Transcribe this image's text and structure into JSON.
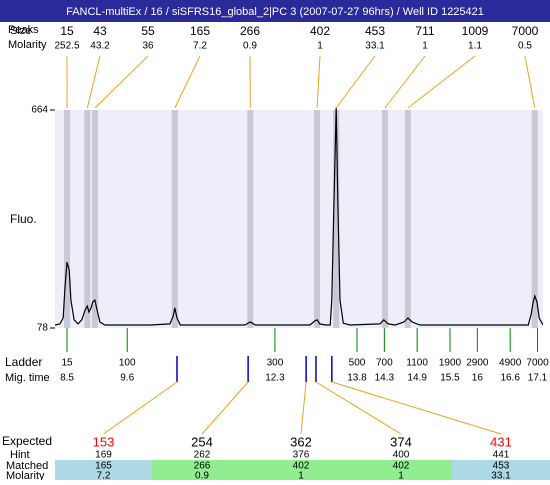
{
  "header": {
    "title": "FANCL-multiEx / 16 / siSFRS16_global_2|PC 3 (2007-07-27 96hrs) / Well ID 1225421"
  },
  "peaks": {
    "size_label": "Size",
    "peaks_label": "Peaks",
    "molarity_label": "Molarity",
    "items": [
      {
        "size": 15,
        "molarity": 252.5,
        "time": 8.5
      },
      {
        "size": 43,
        "molarity": 43.2,
        "time": 8.87
      },
      {
        "size": 55,
        "molarity": 36,
        "time": 9.01
      },
      {
        "size": 165,
        "molarity": 7.2,
        "time": 10.47
      },
      {
        "size": 266,
        "molarity": 0.9,
        "time": 11.85
      },
      {
        "size": 402,
        "molarity": 1,
        "time": 13.07
      },
      {
        "size": 453,
        "molarity": 33.1,
        "time": 13.42
      },
      {
        "size": 711,
        "molarity": 1,
        "time": 14.31
      },
      {
        "size": 1009,
        "molarity": 1.1,
        "time": 14.73
      },
      {
        "size": 7000,
        "molarity": 0.5,
        "time": 17.05
      }
    ]
  },
  "trace": {
    "type": "line",
    "y_label": "Fluo.",
    "ylim": [
      78,
      664
    ],
    "yticks": [
      78,
      664
    ],
    "xlim": [
      8.28,
      17.2
    ],
    "color": "#000000",
    "background": "#eeeefa",
    "band_color": "#c8c8d6",
    "x": [
      8.28,
      8.37,
      8.43,
      8.46,
      8.5,
      8.54,
      8.57,
      8.63,
      8.7,
      8.77,
      8.83,
      8.87,
      8.9,
      8.94,
      8.97,
      9.01,
      9.05,
      9.1,
      9.19,
      10.02,
      10.38,
      10.44,
      10.47,
      10.51,
      10.57,
      11.75,
      11.85,
      11.94,
      12.94,
      13.03,
      13.07,
      13.12,
      13.22,
      13.31,
      13.34,
      13.38,
      13.42,
      13.45,
      13.49,
      13.55,
      13.67,
      14.22,
      14.29,
      14.37,
      14.5,
      14.66,
      14.73,
      14.81,
      14.95,
      16.93,
      16.98,
      17.02,
      17.05,
      17.09,
      17.13,
      17.2
    ],
    "values": [
      86,
      89,
      105,
      180,
      255,
      234,
      153,
      100,
      89,
      100,
      126,
      137,
      121,
      132,
      148,
      153,
      126,
      94,
      86,
      86,
      89,
      110,
      132,
      105,
      86,
      86,
      94,
      86,
      86,
      97,
      100,
      89,
      86,
      86,
      153,
      422,
      670,
      422,
      153,
      91,
      86,
      89,
      100,
      89,
      86,
      94,
      105,
      94,
      86,
      86,
      113,
      148,
      164,
      148,
      105,
      86
    ]
  },
  "ladder": {
    "label": "Ladder",
    "time_label": "Mig. time",
    "color": "#008000",
    "items": [
      {
        "size": 15,
        "time": 8.5
      },
      {
        "size": 100,
        "time": 9.6
      },
      {
        "size": 300,
        "time": 12.3
      },
      {
        "size": 500,
        "time": 13.8
      },
      {
        "size": 700,
        "time": 14.3
      },
      {
        "size": 1100,
        "time": 14.9
      },
      {
        "size": 1900,
        "time": 15.5
      },
      {
        "size": 2900,
        "time": 16
      },
      {
        "size": 4900,
        "time": 16.6
      },
      {
        "size": 7000,
        "time": 17.1
      }
    ]
  },
  "expected": {
    "expected_label": "Expected",
    "hint_label": "Hint",
    "matched_label": "Matched",
    "molarity_label": "Molarity",
    "items": [
      {
        "expected": 153,
        "hint": 169,
        "matched": 165,
        "molarity": 7.2,
        "time": 10.51,
        "color": "#ff0000",
        "row_color": "#add8e6"
      },
      {
        "expected": 254,
        "hint": 262,
        "matched": 266,
        "molarity": 0.9,
        "time": 11.81,
        "color": "#000000",
        "row_color": "#90ee90"
      },
      {
        "expected": 362,
        "hint": 376,
        "matched": 402,
        "molarity": 1,
        "time": 12.87,
        "color": "#000000",
        "row_color": "#90ee90"
      },
      {
        "expected": 374,
        "hint": 400,
        "matched": 402,
        "molarity": 1,
        "time": 13.05,
        "color": "#000000",
        "row_color": "#90ee90"
      },
      {
        "expected": 431,
        "hint": 441,
        "matched": 453,
        "molarity": 33.1,
        "time": 13.34,
        "color": "#ff0000",
        "row_color": "#add8e6"
      }
    ]
  }
}
